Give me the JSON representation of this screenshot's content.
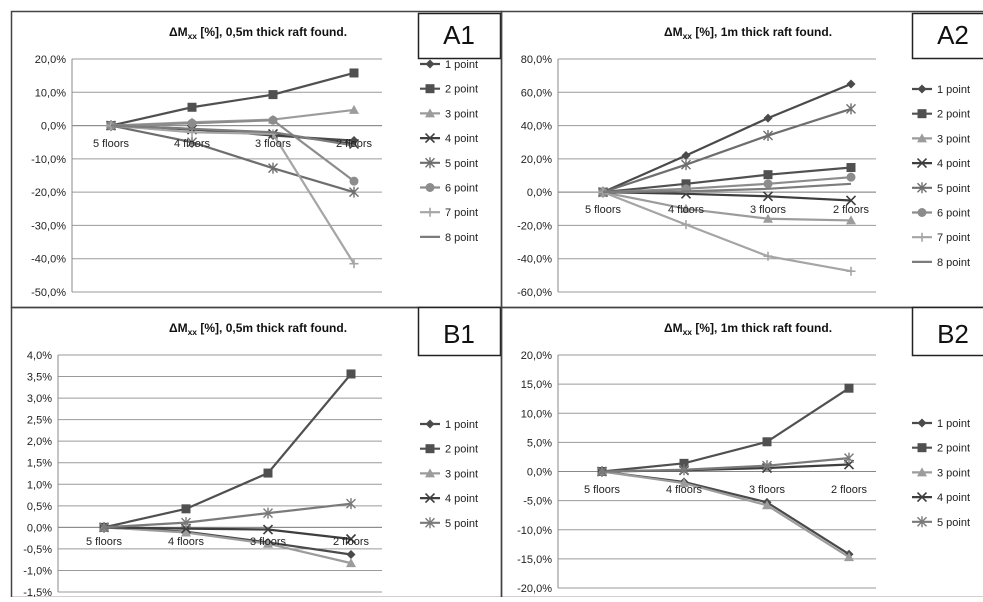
{
  "colors": {
    "border": "#444444",
    "grid": "#9a9a9a",
    "axis": "#888888",
    "text": "#222222"
  },
  "chart_data": [
    {
      "id": "A1",
      "panel_label": "A1",
      "type": "line",
      "title_prefix": "ΔM",
      "title_sub": "xx",
      "title_suffix": " [%], 0,5m thick raft found.",
      "categories": [
        "5 floors",
        "4 floors",
        "3 floors",
        "2 floors"
      ],
      "ylim": [
        -0.5,
        0.2
      ],
      "yticks": [
        0.2,
        0.1,
        0.0,
        -0.1,
        -0.2,
        -0.3,
        -0.4,
        -0.5
      ],
      "ytick_labels": [
        "20,0%",
        "10,0%",
        "0,0%",
        "-10,0%",
        "-20,0%",
        "-30,0%",
        "-40,0%",
        "-50,0%"
      ],
      "grid": true,
      "legend": "right",
      "series": [
        {
          "name": "1 point",
          "marker": "diamond",
          "color": "#4a4a4a",
          "values": [
            0,
            -0.01,
            -0.03,
            -0.045
          ]
        },
        {
          "name": "2 point",
          "marker": "square",
          "color": "#505050",
          "values": [
            0,
            0.055,
            0.093,
            0.158
          ]
        },
        {
          "name": "3 point",
          "marker": "triangle",
          "color": "#9c9c9c",
          "values": [
            0,
            0.01,
            0.018,
            0.047
          ]
        },
        {
          "name": "4 point",
          "marker": "x",
          "color": "#3e3e3e",
          "values": [
            0,
            -0.012,
            -0.025,
            -0.055
          ]
        },
        {
          "name": "5 point",
          "marker": "star",
          "color": "#6e6e6e",
          "values": [
            0,
            -0.05,
            -0.128,
            -0.2
          ]
        },
        {
          "name": "6 point",
          "marker": "circle",
          "color": "#8c8c8c",
          "values": [
            0,
            0.007,
            0.016,
            -0.167
          ]
        },
        {
          "name": "7 point",
          "marker": "plus",
          "color": "#a5a5a5",
          "values": [
            0,
            -0.02,
            -0.025,
            -0.415
          ]
        },
        {
          "name": "8 point",
          "marker": "none",
          "color": "#7c7c7c",
          "values": [
            0,
            -0.01,
            -0.02,
            -0.06
          ]
        }
      ]
    },
    {
      "id": "A2",
      "panel_label": "A2",
      "type": "line",
      "title_prefix": "ΔM",
      "title_sub": "xx",
      "title_suffix": " [%], 1m thick raft found.",
      "categories": [
        "5 floors",
        "4 floors",
        "3 floors",
        "2 floors"
      ],
      "ylim": [
        -0.6,
        0.8
      ],
      "yticks": [
        0.8,
        0.6,
        0.4,
        0.2,
        0.0,
        -0.2,
        -0.4,
        -0.6
      ],
      "ytick_labels": [
        "80,0%",
        "60,0%",
        "40,0%",
        "20,0%",
        "0,0%",
        "-20,0%",
        "-40,0%",
        "-60,0%"
      ],
      "grid": true,
      "legend": "right",
      "series": [
        {
          "name": "1 point",
          "marker": "diamond",
          "color": "#4a4a4a",
          "values": [
            0,
            0.22,
            0.445,
            0.65
          ]
        },
        {
          "name": "2 point",
          "marker": "square",
          "color": "#505050",
          "values": [
            0,
            0.05,
            0.105,
            0.148
          ]
        },
        {
          "name": "3 point",
          "marker": "triangle",
          "color": "#9c9c9c",
          "values": [
            0,
            -0.1,
            -0.16,
            -0.17
          ]
        },
        {
          "name": "4 point",
          "marker": "x",
          "color": "#3e3e3e",
          "values": [
            0,
            -0.01,
            -0.025,
            -0.05
          ]
        },
        {
          "name": "5 point",
          "marker": "star",
          "color": "#6e6e6e",
          "values": [
            0,
            0.165,
            0.34,
            0.5
          ]
        },
        {
          "name": "6 point",
          "marker": "circle",
          "color": "#8c8c8c",
          "values": [
            0,
            0.02,
            0.05,
            0.09
          ]
        },
        {
          "name": "7 point",
          "marker": "plus",
          "color": "#a5a5a5",
          "values": [
            0,
            -0.195,
            -0.385,
            -0.475
          ]
        },
        {
          "name": "8 point",
          "marker": "none",
          "color": "#7c7c7c",
          "values": [
            0,
            0.005,
            0.02,
            0.05
          ]
        }
      ]
    },
    {
      "id": "B1",
      "panel_label": "B1",
      "type": "line",
      "title_prefix": "ΔM",
      "title_sub": "xx",
      "title_suffix": " [%], 0,5m thick raft found.",
      "categories": [
        "5 floors",
        "4 floors",
        "3 floors",
        "2 floors"
      ],
      "ylim": [
        -0.015,
        0.04
      ],
      "yticks": [
        0.04,
        0.035,
        0.03,
        0.025,
        0.02,
        0.015,
        0.01,
        0.005,
        0.0,
        -0.005,
        -0.01,
        -0.015
      ],
      "ytick_labels": [
        "4,0%",
        "3,5%",
        "3,0%",
        "2,5%",
        "2,0%",
        "1,5%",
        "1,0%",
        "0,5%",
        "0,0%",
        "-0,5%",
        "-1,0%",
        "-1,5%"
      ],
      "grid": true,
      "legend": "right",
      "series": [
        {
          "name": "1 point",
          "marker": "diamond",
          "color": "#4a4a4a",
          "values": [
            0,
            -0.001,
            -0.0035,
            -0.0063
          ]
        },
        {
          "name": "2 point",
          "marker": "square",
          "color": "#505050",
          "values": [
            0,
            0.0043,
            0.0126,
            0.0356
          ]
        },
        {
          "name": "3 point",
          "marker": "triangle",
          "color": "#9c9c9c",
          "values": [
            0,
            -0.0012,
            -0.0038,
            -0.0083
          ]
        },
        {
          "name": "4 point",
          "marker": "x",
          "color": "#3e3e3e",
          "values": [
            0,
            -0.0003,
            -0.0005,
            -0.0027
          ]
        },
        {
          "name": "5 point",
          "marker": "star",
          "color": "#7a7a7a",
          "values": [
            0,
            0.0011,
            0.0033,
            0.0055
          ]
        }
      ]
    },
    {
      "id": "B2",
      "panel_label": "B2",
      "type": "line",
      "title_prefix": "ΔM",
      "title_sub": "xx",
      "title_suffix": " [%], 1m thick raft found.",
      "categories": [
        "5 floors",
        "4 floors",
        "3 floors",
        "2 floors"
      ],
      "ylim": [
        -0.2,
        0.2
      ],
      "yticks": [
        0.2,
        0.15,
        0.1,
        0.05,
        0.0,
        -0.05,
        -0.1,
        -0.15,
        -0.2
      ],
      "ytick_labels": [
        "20,0%",
        "15,0%",
        "10,0%",
        "5,0%",
        "0,0%",
        "-5,0%",
        "-10,0%",
        "-15,0%",
        "-20,0%"
      ],
      "grid": true,
      "legend": "right",
      "series": [
        {
          "name": "1 point",
          "marker": "diamond",
          "color": "#4a4a4a",
          "values": [
            0,
            -0.018,
            -0.053,
            -0.142
          ]
        },
        {
          "name": "2 point",
          "marker": "square",
          "color": "#505050",
          "values": [
            0,
            0.014,
            0.051,
            0.143
          ]
        },
        {
          "name": "3 point",
          "marker": "triangle",
          "color": "#9c9c9c",
          "values": [
            0,
            -0.02,
            -0.058,
            -0.147
          ]
        },
        {
          "name": "4 point",
          "marker": "x",
          "color": "#3e3e3e",
          "values": [
            0,
            0.002,
            0.006,
            0.012
          ]
        },
        {
          "name": "5 point",
          "marker": "star",
          "color": "#7a7a7a",
          "values": [
            0,
            0.003,
            0.01,
            0.023
          ]
        }
      ]
    }
  ]
}
